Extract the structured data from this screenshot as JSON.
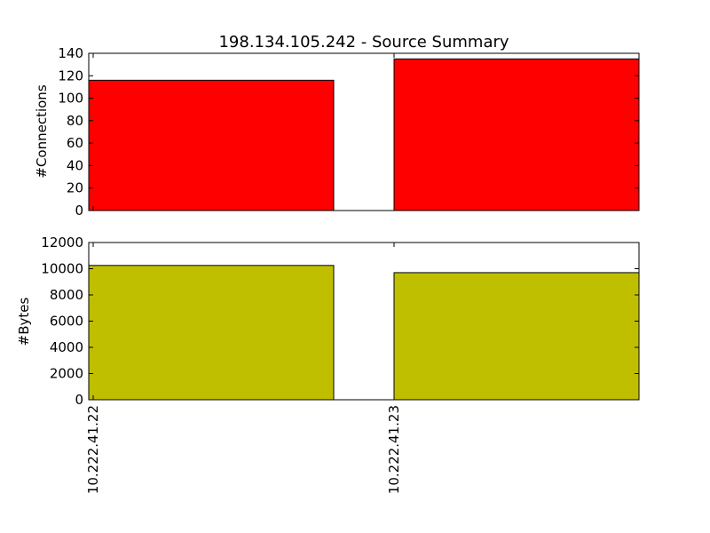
{
  "chart_data": [
    {
      "type": "bar",
      "title": "198.134.105.242 - Source Summary",
      "ylabel": "#Connections",
      "xlabel": "",
      "categories": [
        "10.222.41.22",
        "10.222.41.23"
      ],
      "values": [
        116,
        135
      ],
      "ylim": [
        0,
        140
      ],
      "yticks": [
        "0",
        "20",
        "40",
        "60",
        "80",
        "100",
        "120",
        "140"
      ],
      "bar_color": "#ff0000",
      "grid": false
    },
    {
      "type": "bar",
      "title": "",
      "ylabel": "#Bytes",
      "xlabel": "",
      "categories": [
        "10.222.41.22",
        "10.222.41.23"
      ],
      "values": [
        10250,
        9700
      ],
      "ylim": [
        0,
        12000
      ],
      "yticks": [
        "0",
        "2000",
        "4000",
        "6000",
        "8000",
        "10000",
        "12000"
      ],
      "bar_color": "#bfbf00",
      "grid": false
    }
  ]
}
